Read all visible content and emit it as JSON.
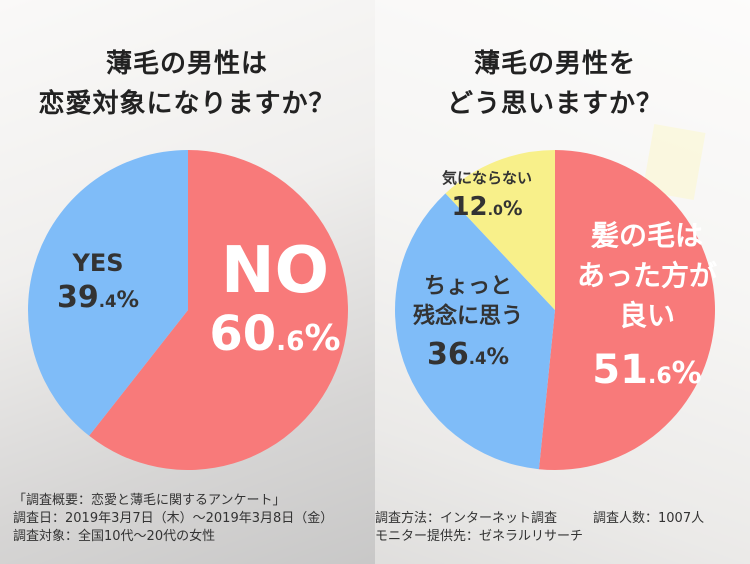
{
  "colors": {
    "red": "#f87a7a",
    "blue": "#7fbcf8",
    "yellow": "#f8f08a",
    "white_label": "#ffffff",
    "dark_label": "#333333"
  },
  "chart_data": [
    {
      "type": "pie",
      "title_lines": [
        "薄毛の男性は",
        "恋愛対象になりますか？"
      ],
      "slices": [
        {
          "label": "NO",
          "value": 60.6,
          "int": "60",
          "dec": ".6",
          "unit": "%",
          "color": "#f87a7a"
        },
        {
          "label": "YES",
          "value": 39.4,
          "int": "39",
          "dec": ".4",
          "unit": "%",
          "color": "#7fbcf8"
        }
      ]
    },
    {
      "type": "pie",
      "title_lines": [
        "薄毛の男性を",
        "どう思いますか？"
      ],
      "slices": [
        {
          "label": "髪の毛はあった方が良い",
          "label_lines": [
            "髪の毛は",
            "あった方が",
            "良い"
          ],
          "value": 51.6,
          "int": "51",
          "dec": ".6",
          "unit": "%",
          "color": "#f87a7a"
        },
        {
          "label": "ちょっと残念に思う",
          "label_lines": [
            "ちょっと",
            "残念に思う"
          ],
          "value": 36.4,
          "int": "36",
          "dec": ".4",
          "unit": "%",
          "color": "#7fbcf8"
        },
        {
          "label": "気にならない",
          "label_lines": [
            "気にならない"
          ],
          "value": 12.0,
          "int": "12",
          "dec": ".0",
          "unit": "%",
          "color": "#f8f08a"
        }
      ]
    }
  ],
  "footer": {
    "line1": "「調査概要：恋愛と薄毛に関するアンケート」",
    "date": "調査日：2019年3月7日（木）〜2019年3月8日（金）",
    "method": "調査方法：インターネット調査",
    "count": "調査人数：1007人",
    "target": "調査対象：全国10代〜20代の女性",
    "provider": "モニター提供先：ゼネラルリサーチ"
  }
}
